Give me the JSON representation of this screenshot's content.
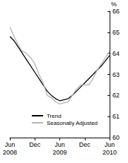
{
  "chart_data": {
    "type": "line",
    "y_label": "%",
    "categories": [
      "Jun 2008",
      null,
      null,
      null,
      null,
      null,
      "Dec",
      null,
      null,
      null,
      null,
      null,
      "Jun 2009",
      null,
      null,
      null,
      null,
      null,
      "Dec",
      null,
      null,
      null,
      null,
      null,
      "Jun 2010"
    ],
    "series": [
      {
        "name": "Trend",
        "color": "#000000",
        "values": [
          64.8,
          64.6,
          64.3,
          64.0,
          63.7,
          63.4,
          63.1,
          62.8,
          62.5,
          62.2,
          62.0,
          61.85,
          61.75,
          61.8,
          61.85,
          62.0,
          62.2,
          62.4,
          62.6,
          62.8,
          63.0,
          63.2,
          63.4,
          63.65,
          63.9
        ]
      },
      {
        "name": "Seasonally Adjusted",
        "color": "#b3b3b3",
        "values": [
          65.25,
          64.8,
          64.4,
          64.1,
          64.0,
          63.8,
          63.5,
          63.0,
          62.6,
          62.0,
          61.9,
          61.7,
          61.6,
          61.65,
          61.7,
          62.0,
          62.3,
          62.5,
          62.5,
          62.5,
          62.8,
          63.2,
          63.5,
          63.8,
          64.1
        ]
      }
    ],
    "ylim": [
      60,
      66
    ],
    "yticks": [
      60,
      61,
      62,
      63,
      64,
      65,
      66
    ],
    "grid": false,
    "legend": "lower left"
  }
}
